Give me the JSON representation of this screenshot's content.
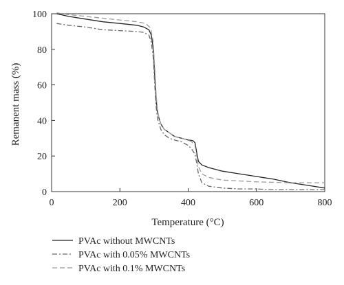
{
  "chart_data": {
    "type": "line",
    "title": "",
    "xlabel": "Temperature (°C)",
    "ylabel": "Remanent mass (%)",
    "xlim": [
      0,
      800
    ],
    "ylim": [
      0,
      100
    ],
    "xticks": [
      0,
      200,
      400,
      600,
      800
    ],
    "yticks": [
      0,
      20,
      40,
      60,
      80,
      100
    ],
    "grid": false,
    "legend_position": "bottom-left",
    "series": [
      {
        "name": "PVAc without MWCNTs",
        "style": "solid",
        "color": "#222222",
        "x": [
          15,
          50,
          100,
          150,
          200,
          250,
          270,
          285,
          292,
          298,
          302,
          306,
          310,
          315,
          320,
          330,
          345,
          360,
          380,
          400,
          410,
          415,
          420,
          425,
          430,
          440,
          460,
          500,
          550,
          600,
          650,
          700,
          750,
          800
        ],
        "y": [
          100,
          98.5,
          97,
          95.5,
          94.5,
          93.5,
          92.5,
          91,
          88,
          80,
          65,
          52,
          45,
          41,
          38,
          35,
          33,
          31,
          30,
          29,
          28.8,
          28.5,
          27.5,
          22,
          17,
          15,
          13.5,
          11.5,
          10,
          8.5,
          7,
          5,
          3.5,
          2
        ]
      },
      {
        "name": "PVAc with 0.05% MWCNTs",
        "style": "dashdot",
        "color": "#666666",
        "x": [
          15,
          50,
          100,
          150,
          200,
          250,
          270,
          285,
          292,
          298,
          302,
          306,
          310,
          315,
          320,
          330,
          345,
          360,
          380,
          400,
          410,
          420,
          425,
          430,
          440,
          460,
          500,
          550,
          600,
          650,
          700,
          750,
          800
        ],
        "y": [
          94.5,
          93.5,
          92.5,
          91,
          90.5,
          90,
          89.5,
          88,
          84,
          75,
          60,
          48,
          41,
          38,
          35,
          32,
          30,
          29,
          28,
          26,
          24,
          21,
          16,
          10,
          5,
          3,
          2,
          1.5,
          1.5,
          1,
          1,
          1,
          1
        ]
      },
      {
        "name": "PVAc with 0.1% MWCNTs",
        "style": "dashed",
        "color": "#9a9a9a",
        "x": [
          15,
          50,
          100,
          150,
          200,
          250,
          275,
          290,
          297,
          302,
          306,
          310,
          315,
          320,
          330,
          345,
          360,
          380,
          400,
          410,
          420,
          425,
          430,
          440,
          460,
          500,
          550,
          600,
          650,
          700,
          750,
          800
        ],
        "y": [
          100.5,
          99.5,
          98.5,
          97.5,
          96.5,
          95.5,
          94.5,
          92,
          85,
          70,
          55,
          46,
          41,
          38,
          35,
          33,
          31,
          30,
          29,
          28,
          26,
          20,
          14,
          10,
          8,
          6.5,
          6,
          5.5,
          5.2,
          5,
          5,
          5
        ]
      }
    ]
  }
}
